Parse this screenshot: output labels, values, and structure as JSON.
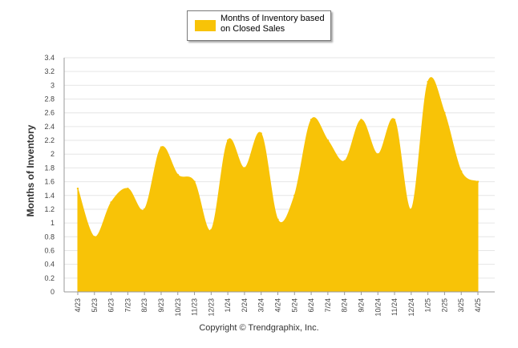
{
  "chart_data": {
    "type": "area",
    "legend": {
      "label": "Months of Inventory based on Closed Sales",
      "placement": "top-center"
    },
    "ylabel": "Months of Inventory",
    "xlabel": "",
    "ylim": [
      0,
      3.4
    ],
    "yticks": [
      "0",
      "0.2",
      "0.4",
      "0.6",
      "0.8",
      "1",
      "1.2",
      "1.4",
      "1.6",
      "1.8",
      "2",
      "2.2",
      "2.4",
      "2.6",
      "2.8",
      "3",
      "3.2",
      "3.4"
    ],
    "grid": true,
    "categories": [
      "4/23",
      "5/23",
      "6/23",
      "7/23",
      "8/23",
      "9/23",
      "10/23",
      "11/23",
      "12/23",
      "1/24",
      "2/24",
      "3/24",
      "4/24",
      "5/24",
      "6/24",
      "7/24",
      "8/24",
      "9/24",
      "10/24",
      "11/24",
      "12/24",
      "1/25",
      "2/25",
      "3/25",
      "4/25"
    ],
    "series": [
      {
        "name": "Months of Inventory based on Closed Sales",
        "values": [
          1.5,
          0.8,
          1.3,
          1.5,
          1.2,
          2.1,
          1.7,
          1.6,
          0.9,
          2.2,
          1.8,
          2.3,
          1.05,
          1.4,
          2.5,
          2.2,
          1.9,
          2.5,
          2.0,
          2.5,
          1.2,
          3.05,
          2.6,
          1.75,
          1.6
        ]
      }
    ],
    "colors": {
      "area": "#f8c307",
      "grid": "#e6e6e6",
      "axis": "#999999"
    }
  },
  "footer": {
    "copyright": "Copyright © Trendgraphix, Inc."
  }
}
